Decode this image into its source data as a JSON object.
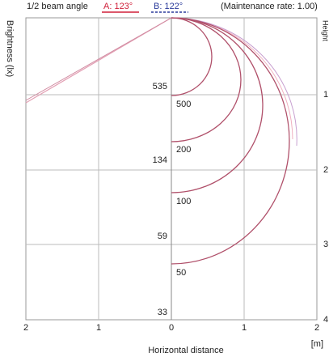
{
  "header": {
    "beam_label": "1/2 beam angle",
    "a": "A: 123°",
    "b": "B: 122°",
    "maintenance": "(Maintenance rate: 1.00)"
  },
  "axes": {
    "y_label": "Brightness (lx)",
    "x_label": "Horizontal distance",
    "x_unit": "[m]",
    "height_label": "Height",
    "x_ticks": [
      "2",
      "1",
      "0",
      "1",
      "2"
    ],
    "height_ticks": [
      "1",
      "2",
      "3",
      "4"
    ]
  },
  "center_values": [
    "535",
    "134",
    "59",
    "33"
  ],
  "curve_labels": [
    "500",
    "200",
    "100",
    "50"
  ]
}
